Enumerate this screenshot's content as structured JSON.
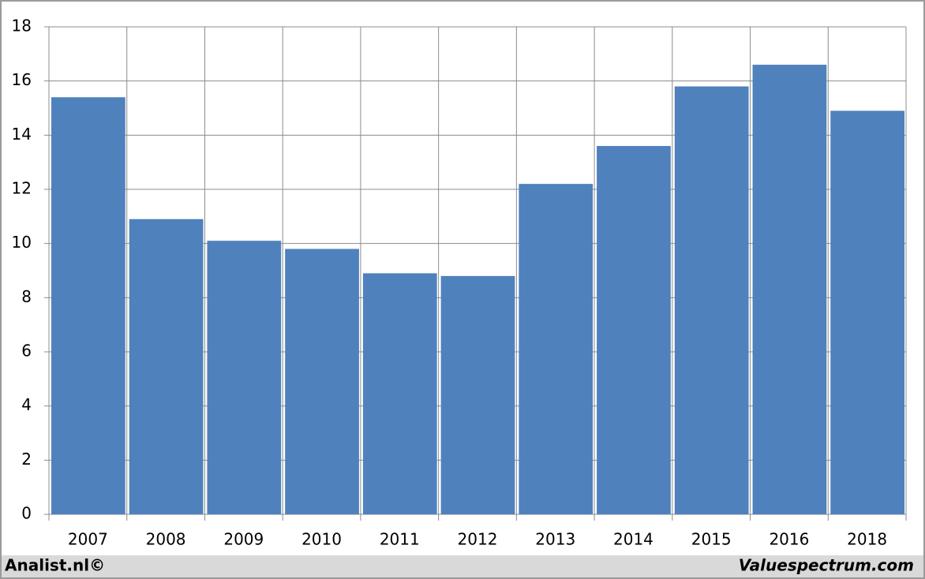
{
  "chart_data": {
    "type": "bar",
    "categories": [
      "2007",
      "2008",
      "2009",
      "2010",
      "2011",
      "2012",
      "2013",
      "2014",
      "2015",
      "2016",
      "2018"
    ],
    "values": [
      15.4,
      10.9,
      10.1,
      9.8,
      8.9,
      8.8,
      12.2,
      13.6,
      15.8,
      16.6,
      14.9
    ],
    "color": "#4f81bd",
    "ylim": [
      0,
      18
    ],
    "yticks": [
      0,
      2,
      4,
      6,
      8,
      10,
      12,
      14,
      16,
      18
    ],
    "grid": true
  },
  "footer": {
    "left": "Analist.nl©",
    "right": "Valuespectrum.com"
  }
}
